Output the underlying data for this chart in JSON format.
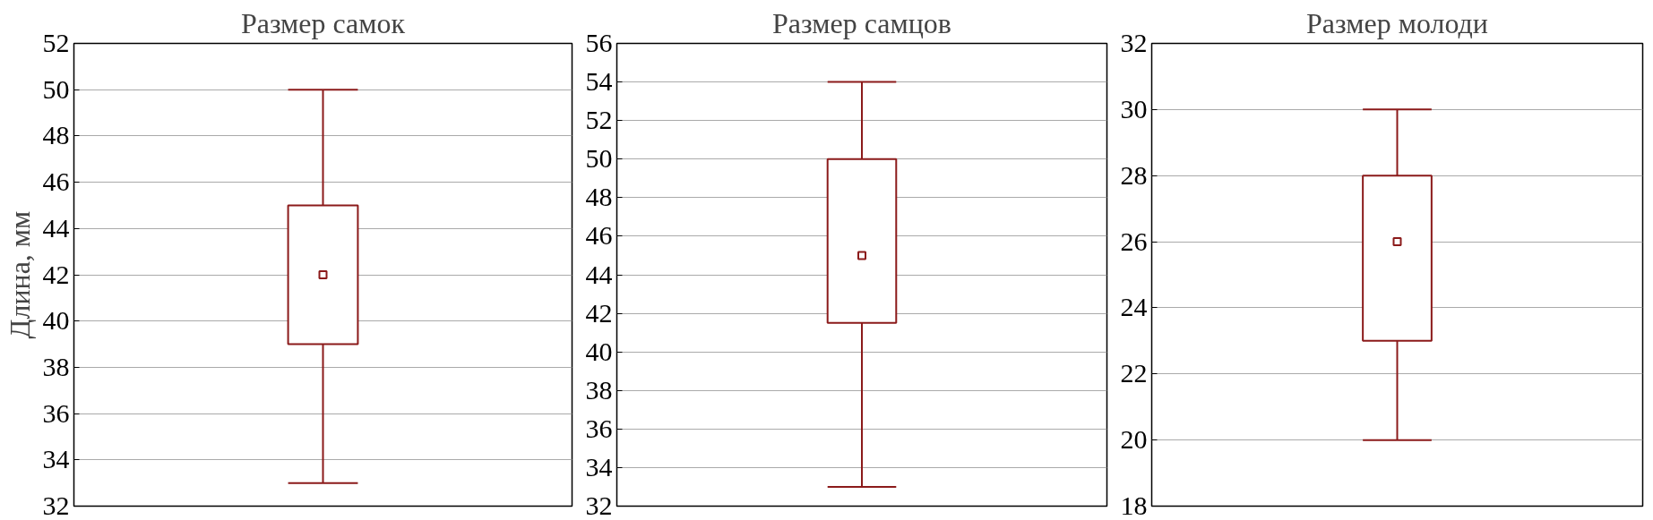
{
  "chart_data": [
    {
      "type": "box",
      "title": "Размер самок",
      "ylabel": "Длина, мм",
      "categories": [
        null
      ],
      "color": "#8b1a1a",
      "grid": "y",
      "ylim": [
        32,
        52
      ],
      "yticks": [
        32,
        34,
        36,
        38,
        40,
        42,
        44,
        46,
        48,
        50,
        52
      ],
      "boxes": [
        {
          "low": 33,
          "q1": 39,
          "median": 42,
          "q3": 45,
          "high": 50
        }
      ]
    },
    {
      "type": "box",
      "title": "Размер самцов",
      "categories": [
        null
      ],
      "color": "#8b1a1a",
      "grid": "y",
      "ylim": [
        32,
        56
      ],
      "yticks": [
        32,
        34,
        36,
        38,
        40,
        42,
        44,
        46,
        48,
        50,
        52,
        54,
        56
      ],
      "boxes": [
        {
          "low": 33,
          "q1": 41.5,
          "median": 45,
          "q3": 50,
          "high": 54
        }
      ]
    },
    {
      "type": "box",
      "title": "Размер молоди",
      "categories": [
        null
      ],
      "color": "#8b1a1a",
      "grid": "y",
      "ylim": [
        18,
        32
      ],
      "yticks": [
        18,
        20,
        22,
        24,
        26,
        28,
        30,
        32
      ],
      "boxes": [
        {
          "low": 20,
          "q1": 23,
          "median": 26,
          "q3": 28,
          "high": 30
        }
      ]
    }
  ]
}
